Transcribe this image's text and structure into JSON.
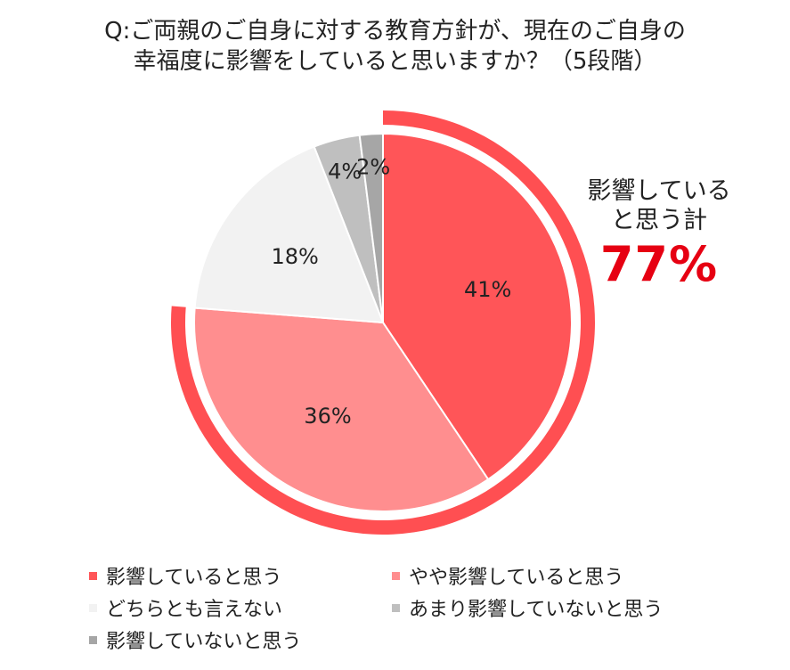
{
  "title": {
    "line1": "Q:ご両親のご自身に対する教育方針が、現在のご自身の",
    "line2": "幸福度に影響をしていると思いますか？（5段階）"
  },
  "callout": {
    "line1": "影響している",
    "line2": "と思う計",
    "total": "77%",
    "total_color": "#e60012",
    "ring_color": "#ff4f52"
  },
  "chart_data": {
    "type": "pie",
    "start": "12 o'clock",
    "direction": "clockwise",
    "categories": [
      "影響していると思う",
      "やや影響していると思う",
      "どちらとも言えない",
      "あまり影響していないと思う",
      "影響していないと思う"
    ],
    "values": [
      41,
      36,
      18,
      4,
      2
    ],
    "labels": [
      "41%",
      "36%",
      "18%",
      "4%",
      "2%"
    ],
    "colors": [
      "#ff5558",
      "#ff8e8f",
      "#f2f2f2",
      "#bfbfbf",
      "#a6a6a6"
    ],
    "highlight_group": {
      "categories": [
        "影響していると思う",
        "やや影響していると思う"
      ],
      "total": 77
    }
  },
  "legend": [
    {
      "label": "影響していると思う",
      "color": "#ff5558"
    },
    {
      "label": "やや影響していると思う",
      "color": "#ff8e8f"
    },
    {
      "label": "どちらとも言えない",
      "color": "#f2f2f2"
    },
    {
      "label": "あまり影響していないと思う",
      "color": "#bfbfbf"
    },
    {
      "label": "影響していないと思う",
      "color": "#a6a6a6"
    }
  ]
}
